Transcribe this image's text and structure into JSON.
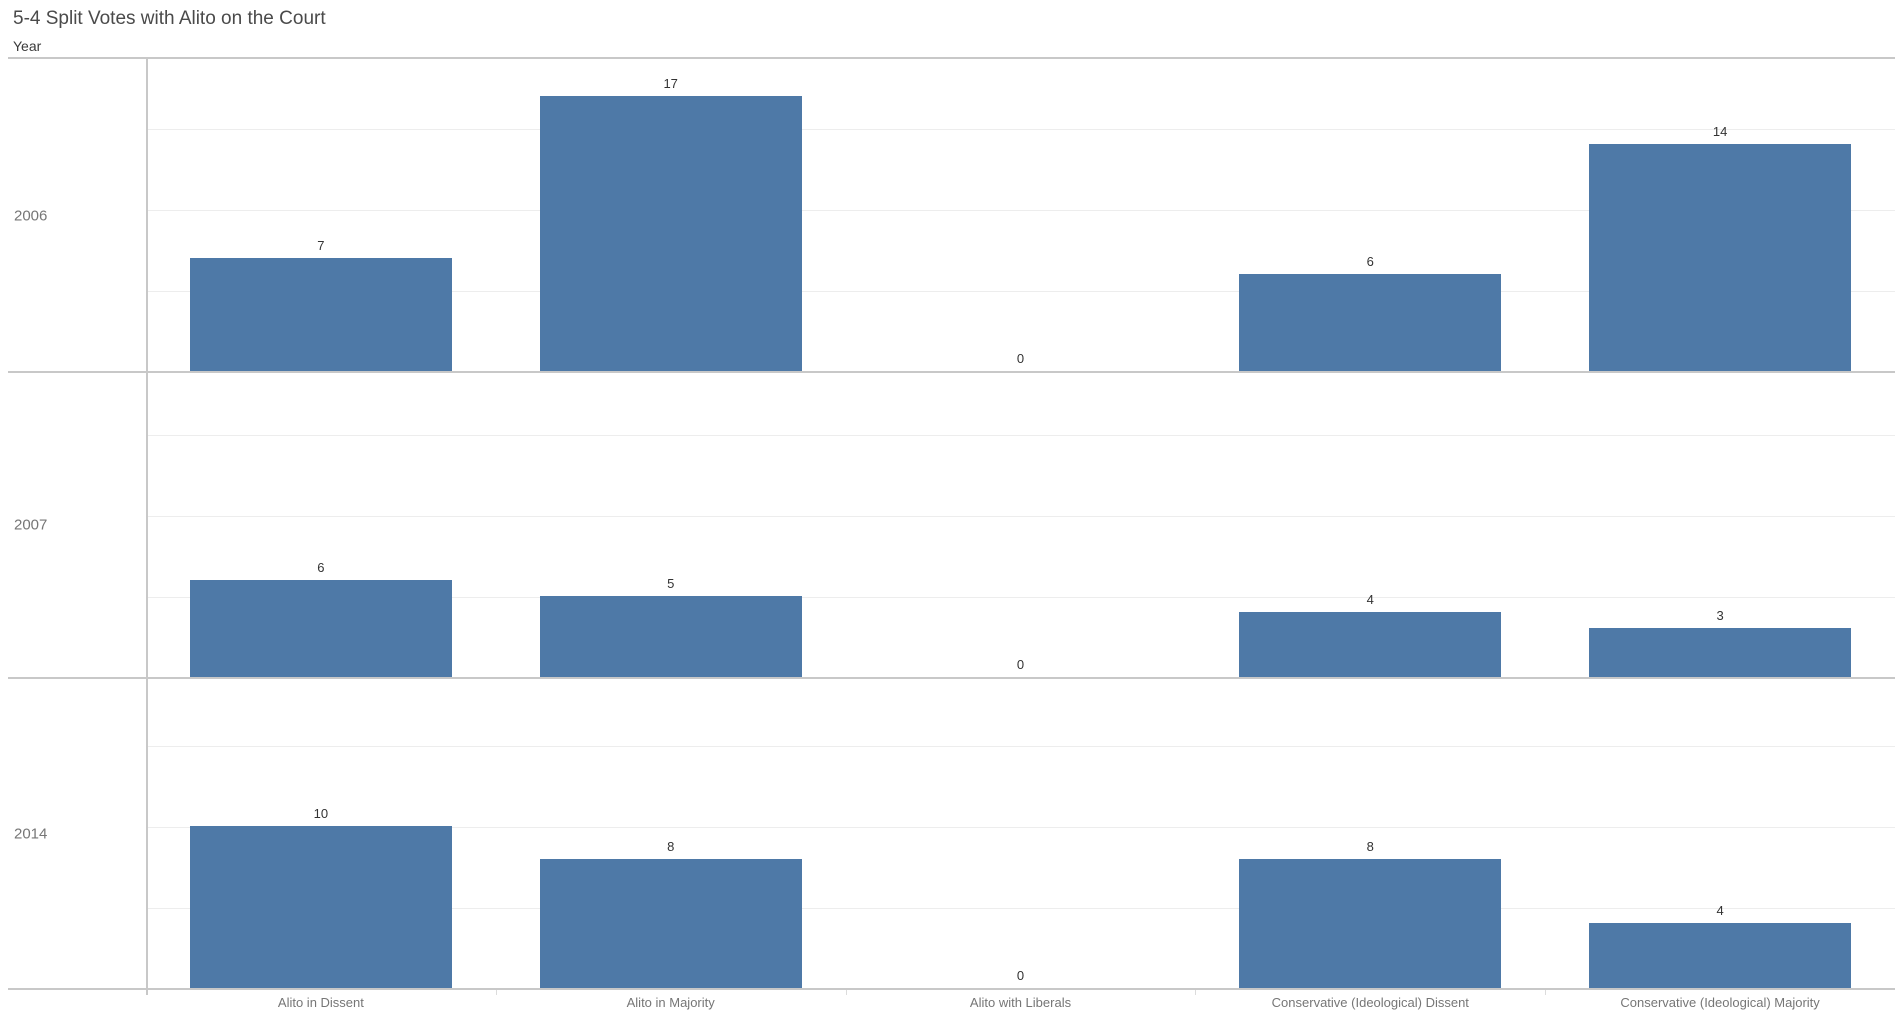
{
  "title": "5-4 Split Votes with Alito on the Court",
  "row_axis_label": "Year",
  "colors": {
    "bar": "#4e79a7",
    "axis_line": "#c8c8c8",
    "gridline": "#ededed",
    "tick": "#dcdcdc",
    "title_text": "#4a4a4a",
    "header_text": "#3a3a3a",
    "axis_text": "#767676",
    "value_text": "#333333"
  },
  "chart_data": {
    "type": "bar",
    "title": "5-4 Split Votes with Alito on the Court",
    "row_field": "Year",
    "categories": [
      "Alito in Dissent",
      "Alito in Majority",
      "Alito with Liberals",
      "Conservative (Ideological) Dissent",
      "Conservative (Ideological) Majority"
    ],
    "rows": [
      {
        "year": "2006",
        "values": [
          7,
          17,
          0,
          6,
          14
        ]
      },
      {
        "year": "2007",
        "values": [
          6,
          5,
          0,
          4,
          3
        ]
      },
      {
        "year": "2014",
        "values": [
          10,
          8,
          0,
          8,
          4
        ]
      }
    ],
    "value_axis": {
      "min": 0,
      "max": 19.3,
      "gridline_interval": 5,
      "gridlines": [
        5,
        10,
        15
      ],
      "gridlines_visible": true,
      "axis_labels_visible": false
    },
    "bar_labels": true,
    "legend": "none",
    "orientation": "vertical-bars-trellised-by-year"
  }
}
